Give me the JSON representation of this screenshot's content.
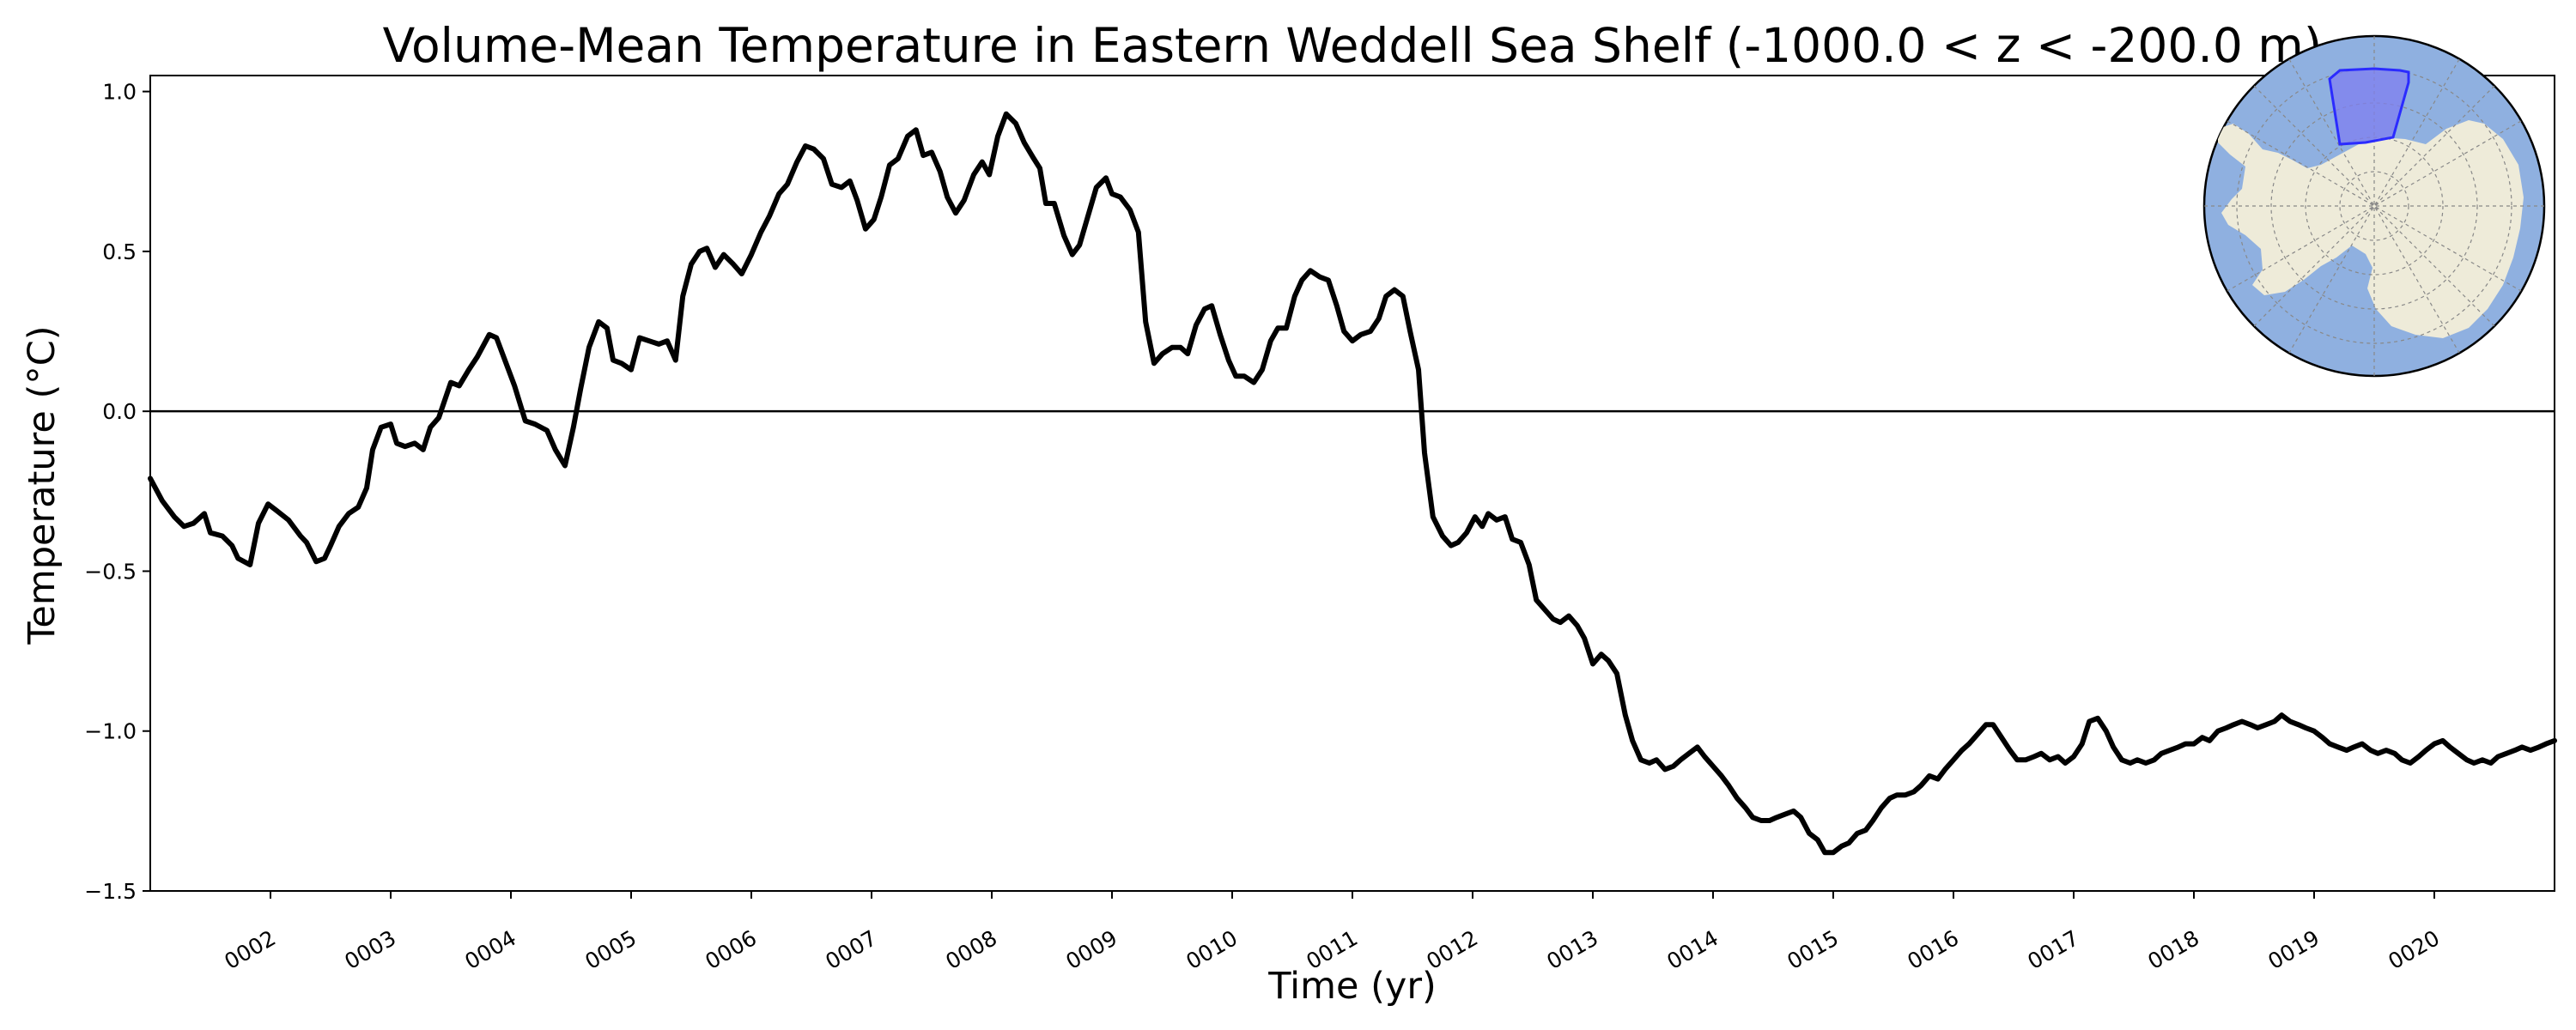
{
  "chart_data": {
    "type": "line",
    "title": "Volume-Mean Temperature in Eastern Weddell Sea Shelf (-1000.0 < z < -200.0 m)",
    "xlabel": "Time (yr)",
    "ylabel": "Temperature (°C)",
    "xlim": [
      1.0,
      21.0
    ],
    "ylim": [
      -1.5,
      1.05
    ],
    "x_ticks": [
      2,
      3,
      4,
      5,
      6,
      7,
      8,
      9,
      10,
      11,
      12,
      13,
      14,
      15,
      16,
      17,
      18,
      19,
      20
    ],
    "x_tick_labels": [
      "0002",
      "0003",
      "0004",
      "0005",
      "0006",
      "0007",
      "0008",
      "0009",
      "0010",
      "0011",
      "0012",
      "0013",
      "0014",
      "0015",
      "0016",
      "0017",
      "0018",
      "0019",
      "0020"
    ],
    "y_ticks": [
      -1.5,
      -1.0,
      -0.5,
      0.0,
      0.5,
      1.0
    ],
    "y_tick_labels": [
      "−1.5",
      "−1.0",
      "−0.5",
      "0.0",
      "0.5",
      "1.0"
    ],
    "zero_line": 0.0,
    "grid": false,
    "series": [
      {
        "color": "#000000",
        "points": [
          [
            1.0,
            -0.21
          ],
          [
            1.1,
            -0.28
          ],
          [
            1.2,
            -0.33
          ],
          [
            1.28,
            -0.36
          ],
          [
            1.36,
            -0.35
          ],
          [
            1.45,
            -0.32
          ],
          [
            1.5,
            -0.38
          ],
          [
            1.6,
            -0.39
          ],
          [
            1.68,
            -0.42
          ],
          [
            1.73,
            -0.46
          ],
          [
            1.83,
            -0.48
          ],
          [
            1.9,
            -0.35
          ],
          [
            1.98,
            -0.29
          ],
          [
            2.05,
            -0.31
          ],
          [
            2.15,
            -0.34
          ],
          [
            2.25,
            -0.39
          ],
          [
            2.3,
            -0.41
          ],
          [
            2.38,
            -0.47
          ],
          [
            2.45,
            -0.46
          ],
          [
            2.5,
            -0.42
          ],
          [
            2.57,
            -0.36
          ],
          [
            2.65,
            -0.32
          ],
          [
            2.73,
            -0.3
          ],
          [
            2.8,
            -0.24
          ],
          [
            2.85,
            -0.12
          ],
          [
            2.92,
            -0.05
          ],
          [
            3.0,
            -0.04
          ],
          [
            3.05,
            -0.1
          ],
          [
            3.12,
            -0.11
          ],
          [
            3.2,
            -0.1
          ],
          [
            3.27,
            -0.12
          ],
          [
            3.33,
            -0.05
          ],
          [
            3.4,
            -0.02
          ],
          [
            3.5,
            0.09
          ],
          [
            3.57,
            0.08
          ],
          [
            3.65,
            0.13
          ],
          [
            3.72,
            0.17
          ],
          [
            3.82,
            0.24
          ],
          [
            3.88,
            0.23
          ],
          [
            3.96,
            0.15
          ],
          [
            4.03,
            0.08
          ],
          [
            4.12,
            -0.03
          ],
          [
            4.2,
            -0.04
          ],
          [
            4.3,
            -0.06
          ],
          [
            4.37,
            -0.12
          ],
          [
            4.45,
            -0.17
          ],
          [
            4.52,
            -0.05
          ],
          [
            4.58,
            0.07
          ],
          [
            4.65,
            0.2
          ],
          [
            4.73,
            0.28
          ],
          [
            4.8,
            0.26
          ],
          [
            4.85,
            0.16
          ],
          [
            4.92,
            0.15
          ],
          [
            5.0,
            0.13
          ],
          [
            5.07,
            0.23
          ],
          [
            5.15,
            0.22
          ],
          [
            5.23,
            0.21
          ],
          [
            5.3,
            0.22
          ],
          [
            5.37,
            0.16
          ],
          [
            5.43,
            0.36
          ],
          [
            5.5,
            0.46
          ],
          [
            5.57,
            0.5
          ],
          [
            5.63,
            0.51
          ],
          [
            5.7,
            0.45
          ],
          [
            5.77,
            0.49
          ],
          [
            5.85,
            0.46
          ],
          [
            5.92,
            0.43
          ],
          [
            6.0,
            0.49
          ],
          [
            6.08,
            0.56
          ],
          [
            6.15,
            0.61
          ],
          [
            6.23,
            0.68
          ],
          [
            6.3,
            0.71
          ],
          [
            6.38,
            0.78
          ],
          [
            6.45,
            0.83
          ],
          [
            6.52,
            0.82
          ],
          [
            6.6,
            0.79
          ],
          [
            6.67,
            0.71
          ],
          [
            6.75,
            0.7
          ],
          [
            6.82,
            0.72
          ],
          [
            6.88,
            0.66
          ],
          [
            6.95,
            0.57
          ],
          [
            7.02,
            0.6
          ],
          [
            7.08,
            0.67
          ],
          [
            7.15,
            0.77
          ],
          [
            7.22,
            0.79
          ],
          [
            7.3,
            0.86
          ],
          [
            7.37,
            0.88
          ],
          [
            7.43,
            0.8
          ],
          [
            7.5,
            0.81
          ],
          [
            7.57,
            0.75
          ],
          [
            7.63,
            0.67
          ],
          [
            7.7,
            0.62
          ],
          [
            7.77,
            0.66
          ],
          [
            7.85,
            0.74
          ],
          [
            7.92,
            0.78
          ],
          [
            7.98,
            0.74
          ],
          [
            8.05,
            0.86
          ],
          [
            8.12,
            0.93
          ],
          [
            8.2,
            0.9
          ],
          [
            8.27,
            0.84
          ],
          [
            8.35,
            0.79
          ],
          [
            8.4,
            0.76
          ],
          [
            8.45,
            0.65
          ],
          [
            8.52,
            0.65
          ],
          [
            8.6,
            0.55
          ],
          [
            8.67,
            0.49
          ],
          [
            8.73,
            0.52
          ],
          [
            8.8,
            0.61
          ],
          [
            8.87,
            0.7
          ],
          [
            8.95,
            0.73
          ],
          [
            9.0,
            0.68
          ],
          [
            9.07,
            0.67
          ],
          [
            9.15,
            0.63
          ],
          [
            9.22,
            0.56
          ],
          [
            9.28,
            0.28
          ],
          [
            9.35,
            0.15
          ],
          [
            9.42,
            0.18
          ],
          [
            9.5,
            0.2
          ],
          [
            9.57,
            0.2
          ],
          [
            9.63,
            0.18
          ],
          [
            9.7,
            0.27
          ],
          [
            9.77,
            0.32
          ],
          [
            9.83,
            0.33
          ],
          [
            9.9,
            0.24
          ],
          [
            9.97,
            0.16
          ],
          [
            10.03,
            0.11
          ],
          [
            10.1,
            0.11
          ],
          [
            10.18,
            0.09
          ],
          [
            10.25,
            0.13
          ],
          [
            10.32,
            0.22
          ],
          [
            10.38,
            0.26
          ],
          [
            10.45,
            0.26
          ],
          [
            10.52,
            0.36
          ],
          [
            10.58,
            0.41
          ],
          [
            10.65,
            0.44
          ],
          [
            10.73,
            0.42
          ],
          [
            10.8,
            0.41
          ],
          [
            10.87,
            0.33
          ],
          [
            10.93,
            0.25
          ],
          [
            11.0,
            0.22
          ],
          [
            11.07,
            0.24
          ],
          [
            11.15,
            0.25
          ],
          [
            11.22,
            0.29
          ],
          [
            11.28,
            0.36
          ],
          [
            11.35,
            0.38
          ],
          [
            11.42,
            0.36
          ],
          [
            11.48,
            0.25
          ],
          [
            11.55,
            0.13
          ],
          [
            11.6,
            -0.13
          ],
          [
            11.67,
            -0.33
          ],
          [
            11.75,
            -0.39
          ],
          [
            11.82,
            -0.42
          ],
          [
            11.88,
            -0.41
          ],
          [
            11.95,
            -0.38
          ],
          [
            12.02,
            -0.33
          ],
          [
            12.08,
            -0.36
          ],
          [
            12.13,
            -0.32
          ],
          [
            12.2,
            -0.34
          ],
          [
            12.27,
            -0.33
          ],
          [
            12.33,
            -0.4
          ],
          [
            12.4,
            -0.41
          ],
          [
            12.47,
            -0.48
          ],
          [
            12.53,
            -0.59
          ],
          [
            12.6,
            -0.62
          ],
          [
            12.67,
            -0.65
          ],
          [
            12.73,
            -0.66
          ],
          [
            12.8,
            -0.64
          ],
          [
            12.87,
            -0.67
          ],
          [
            12.93,
            -0.71
          ],
          [
            13.0,
            -0.79
          ],
          [
            13.07,
            -0.76
          ],
          [
            13.13,
            -0.78
          ],
          [
            13.2,
            -0.82
          ],
          [
            13.27,
            -0.95
          ],
          [
            13.33,
            -1.03
          ],
          [
            13.4,
            -1.09
          ],
          [
            13.47,
            -1.1
          ],
          [
            13.53,
            -1.09
          ],
          [
            13.6,
            -1.12
          ],
          [
            13.67,
            -1.11
          ],
          [
            13.73,
            -1.09
          ],
          [
            13.8,
            -1.07
          ],
          [
            13.87,
            -1.05
          ],
          [
            13.93,
            -1.08
          ],
          [
            14.0,
            -1.11
          ],
          [
            14.07,
            -1.14
          ],
          [
            14.13,
            -1.17
          ],
          [
            14.2,
            -1.21
          ],
          [
            14.27,
            -1.24
          ],
          [
            14.33,
            -1.27
          ],
          [
            14.4,
            -1.28
          ],
          [
            14.47,
            -1.28
          ],
          [
            14.53,
            -1.27
          ],
          [
            14.6,
            -1.26
          ],
          [
            14.67,
            -1.25
          ],
          [
            14.73,
            -1.27
          ],
          [
            14.8,
            -1.32
          ],
          [
            14.87,
            -1.34
          ],
          [
            14.93,
            -1.38
          ],
          [
            15.0,
            -1.38
          ],
          [
            15.07,
            -1.36
          ],
          [
            15.13,
            -1.35
          ],
          [
            15.2,
            -1.32
          ],
          [
            15.27,
            -1.31
          ],
          [
            15.33,
            -1.28
          ],
          [
            15.4,
            -1.24
          ],
          [
            15.47,
            -1.21
          ],
          [
            15.53,
            -1.2
          ],
          [
            15.6,
            -1.2
          ],
          [
            15.67,
            -1.19
          ],
          [
            15.73,
            -1.17
          ],
          [
            15.8,
            -1.14
          ],
          [
            15.87,
            -1.15
          ],
          [
            15.93,
            -1.12
          ],
          [
            16.0,
            -1.09
          ],
          [
            16.07,
            -1.06
          ],
          [
            16.13,
            -1.04
          ],
          [
            16.2,
            -1.01
          ],
          [
            16.27,
            -0.98
          ],
          [
            16.33,
            -0.98
          ],
          [
            16.4,
            -1.02
          ],
          [
            16.47,
            -1.06
          ],
          [
            16.53,
            -1.09
          ],
          [
            16.6,
            -1.09
          ],
          [
            16.67,
            -1.08
          ],
          [
            16.73,
            -1.07
          ],
          [
            16.8,
            -1.09
          ],
          [
            16.87,
            -1.08
          ],
          [
            16.93,
            -1.1
          ],
          [
            17.0,
            -1.08
          ],
          [
            17.07,
            -1.04
          ],
          [
            17.13,
            -0.97
          ],
          [
            17.2,
            -0.96
          ],
          [
            17.27,
            -1.0
          ],
          [
            17.33,
            -1.05
          ],
          [
            17.4,
            -1.09
          ],
          [
            17.47,
            -1.1
          ],
          [
            17.53,
            -1.09
          ],
          [
            17.6,
            -1.1
          ],
          [
            17.67,
            -1.09
          ],
          [
            17.73,
            -1.07
          ],
          [
            17.8,
            -1.06
          ],
          [
            17.87,
            -1.05
          ],
          [
            17.93,
            -1.04
          ],
          [
            18.0,
            -1.04
          ],
          [
            18.07,
            -1.02
          ],
          [
            18.13,
            -1.03
          ],
          [
            18.2,
            -1.0
          ],
          [
            18.27,
            -0.99
          ],
          [
            18.33,
            -0.98
          ],
          [
            18.4,
            -0.97
          ],
          [
            18.47,
            -0.98
          ],
          [
            18.53,
            -0.99
          ],
          [
            18.6,
            -0.98
          ],
          [
            18.67,
            -0.97
          ],
          [
            18.73,
            -0.95
          ],
          [
            18.8,
            -0.97
          ],
          [
            18.87,
            -0.98
          ],
          [
            18.93,
            -0.99
          ],
          [
            19.0,
            -1.0
          ],
          [
            19.07,
            -1.02
          ],
          [
            19.13,
            -1.04
          ],
          [
            19.2,
            -1.05
          ],
          [
            19.27,
            -1.06
          ],
          [
            19.33,
            -1.05
          ],
          [
            19.4,
            -1.04
          ],
          [
            19.47,
            -1.06
          ],
          [
            19.53,
            -1.07
          ],
          [
            19.6,
            -1.06
          ],
          [
            19.67,
            -1.07
          ],
          [
            19.73,
            -1.09
          ],
          [
            19.8,
            -1.1
          ],
          [
            19.87,
            -1.08
          ],
          [
            19.93,
            -1.06
          ],
          [
            20.0,
            -1.04
          ],
          [
            20.07,
            -1.03
          ],
          [
            20.13,
            -1.05
          ],
          [
            20.2,
            -1.07
          ],
          [
            20.27,
            -1.09
          ],
          [
            20.33,
            -1.1
          ],
          [
            20.4,
            -1.09
          ],
          [
            20.47,
            -1.1
          ],
          [
            20.53,
            -1.08
          ],
          [
            20.6,
            -1.07
          ],
          [
            20.67,
            -1.06
          ],
          [
            20.73,
            -1.05
          ],
          [
            20.8,
            -1.06
          ],
          [
            20.87,
            -1.05
          ],
          [
            20.93,
            -1.04
          ],
          [
            21.0,
            -1.03
          ]
        ]
      }
    ],
    "inset_map": {
      "type": "polar-stereographic",
      "region": "Eastern Weddell Sea Shelf",
      "ocean_color": "#8fb0e0",
      "land_color": "#eeebd9",
      "region_fill": "#7f7ff0",
      "region_edge": "#2b2bff"
    }
  }
}
